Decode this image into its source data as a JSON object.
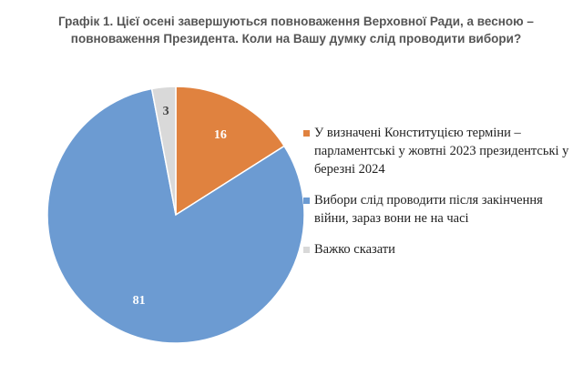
{
  "chart_data": {
    "type": "pie",
    "title": "Графік 1. Цієї осені завершуються повноваження Верховної Ради, а весною – повноваження Президента. Коли на Вашу думку слід проводити вибори?",
    "start_angle_deg": 0,
    "direction": "clockwise",
    "legend_position": "right",
    "slices": [
      {
        "label": "У визначені Конституцією терміни – парламентські у жовтні 2023 президентські у березні 2024",
        "value": 16,
        "value_label": "16",
        "color": "#E0823F",
        "label_color": "#ffffff"
      },
      {
        "label": "Вибори слід проводити після закінчення війни, зараз вони не на часі",
        "value": 81,
        "value_label": "81",
        "color": "#6C9BD2",
        "label_color": "#ffffff"
      },
      {
        "label": "Важко сказати",
        "value": 3,
        "value_label": "3",
        "color": "#D9D9D9",
        "label_color": "#444444"
      }
    ]
  }
}
